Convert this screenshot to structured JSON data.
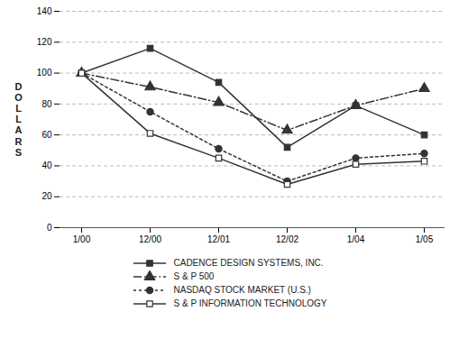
{
  "chart_data": {
    "type": "line",
    "categories": [
      "1/00",
      "12/00",
      "12/01",
      "12/02",
      "1/04",
      "1/05"
    ],
    "series": [
      {
        "name": "CADENCE DESIGN SYSTEMS, INC.",
        "color": "#333333",
        "values": [
          100,
          116,
          94,
          52,
          79,
          60
        ],
        "marker": "square",
        "line_style": "solid"
      },
      {
        "name": "S & P 500",
        "color": "#333333",
        "values": [
          100,
          91,
          81,
          63,
          79,
          90
        ],
        "marker": "triangle",
        "line_style": "dashdot"
      },
      {
        "name": "NASDAQ STOCK MARKET (U.S.)",
        "color": "#333333",
        "values": [
          100,
          75,
          51,
          30,
          45,
          48
        ],
        "marker": "circle",
        "line_style": "dotted"
      },
      {
        "name": "S & P INFORMATION TECHNOLOGY",
        "color": "#333333",
        "values": [
          100,
          61,
          45,
          28,
          41,
          43
        ],
        "marker": "square-open",
        "line_style": "solid"
      }
    ],
    "ylabel": "DOLLARS",
    "ylim": [
      0,
      140
    ],
    "yticks": [
      0,
      20,
      40,
      60,
      80,
      100,
      120,
      140
    ],
    "grid": true,
    "legend": "bottom"
  }
}
